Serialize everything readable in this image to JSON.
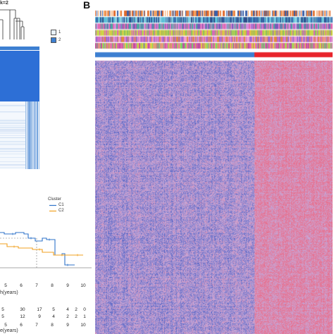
{
  "panel_a": {
    "k_label": "k=2",
    "consensus_legend": [
      {
        "label": "1",
        "color": "#e8f1fb"
      },
      {
        "label": "2",
        "color": "#3c7fd1"
      }
    ],
    "km": {
      "legend_title": "Cluster",
      "series": [
        {
          "name": "C1",
          "color": "#2f73c9"
        },
        {
          "name": "C2",
          "color": "#f0a020"
        }
      ],
      "x_ticks": [
        "5",
        "6",
        "7",
        "8",
        "9",
        "10"
      ],
      "x_label": "h(years)",
      "risk_x_label": "e(years)",
      "risk_rows": [
        [
          "30",
          "17",
          "5",
          "4",
          "2",
          "0"
        ],
        [
          "12",
          "9",
          "4",
          "2",
          "2",
          "1"
        ]
      ],
      "risk_row_prefix": [
        "5",
        "5"
      ]
    }
  },
  "panel_b": {
    "letter": "B",
    "tracks": [
      {
        "palette": [
          "#e06a2c",
          "#3a5fa8",
          "#f4a261",
          "#ffffff"
        ]
      },
      {
        "palette": [
          "#3a6fb0",
          "#5cc0d8",
          "#2f4d8a",
          "#8fd0e0"
        ]
      },
      {
        "palette": [
          "#7a5bb8",
          "#d98adf",
          "#4aa8a0",
          "#e06ab0"
        ]
      },
      {
        "palette": [
          "#c8d84a",
          "#8ac060",
          "#e0c040",
          "#d868b8"
        ]
      },
      {
        "palette": [
          "#d070c8",
          "#f0a0d0",
          "#e08a40",
          "#9a6ad0"
        ]
      },
      {
        "palette": [
          "#e86ab0",
          "#7ad070",
          "#e0d040",
          "#c050a0"
        ]
      }
    ],
    "cluster_bar": {
      "c1_color": "#3c7fd1",
      "c2_color": "#e8232a",
      "c1_fraction": 0.67
    },
    "heatmap_colors": {
      "low": "#4a5ec4",
      "mid": "#c8a8d8",
      "high": "#e8708e"
    }
  }
}
